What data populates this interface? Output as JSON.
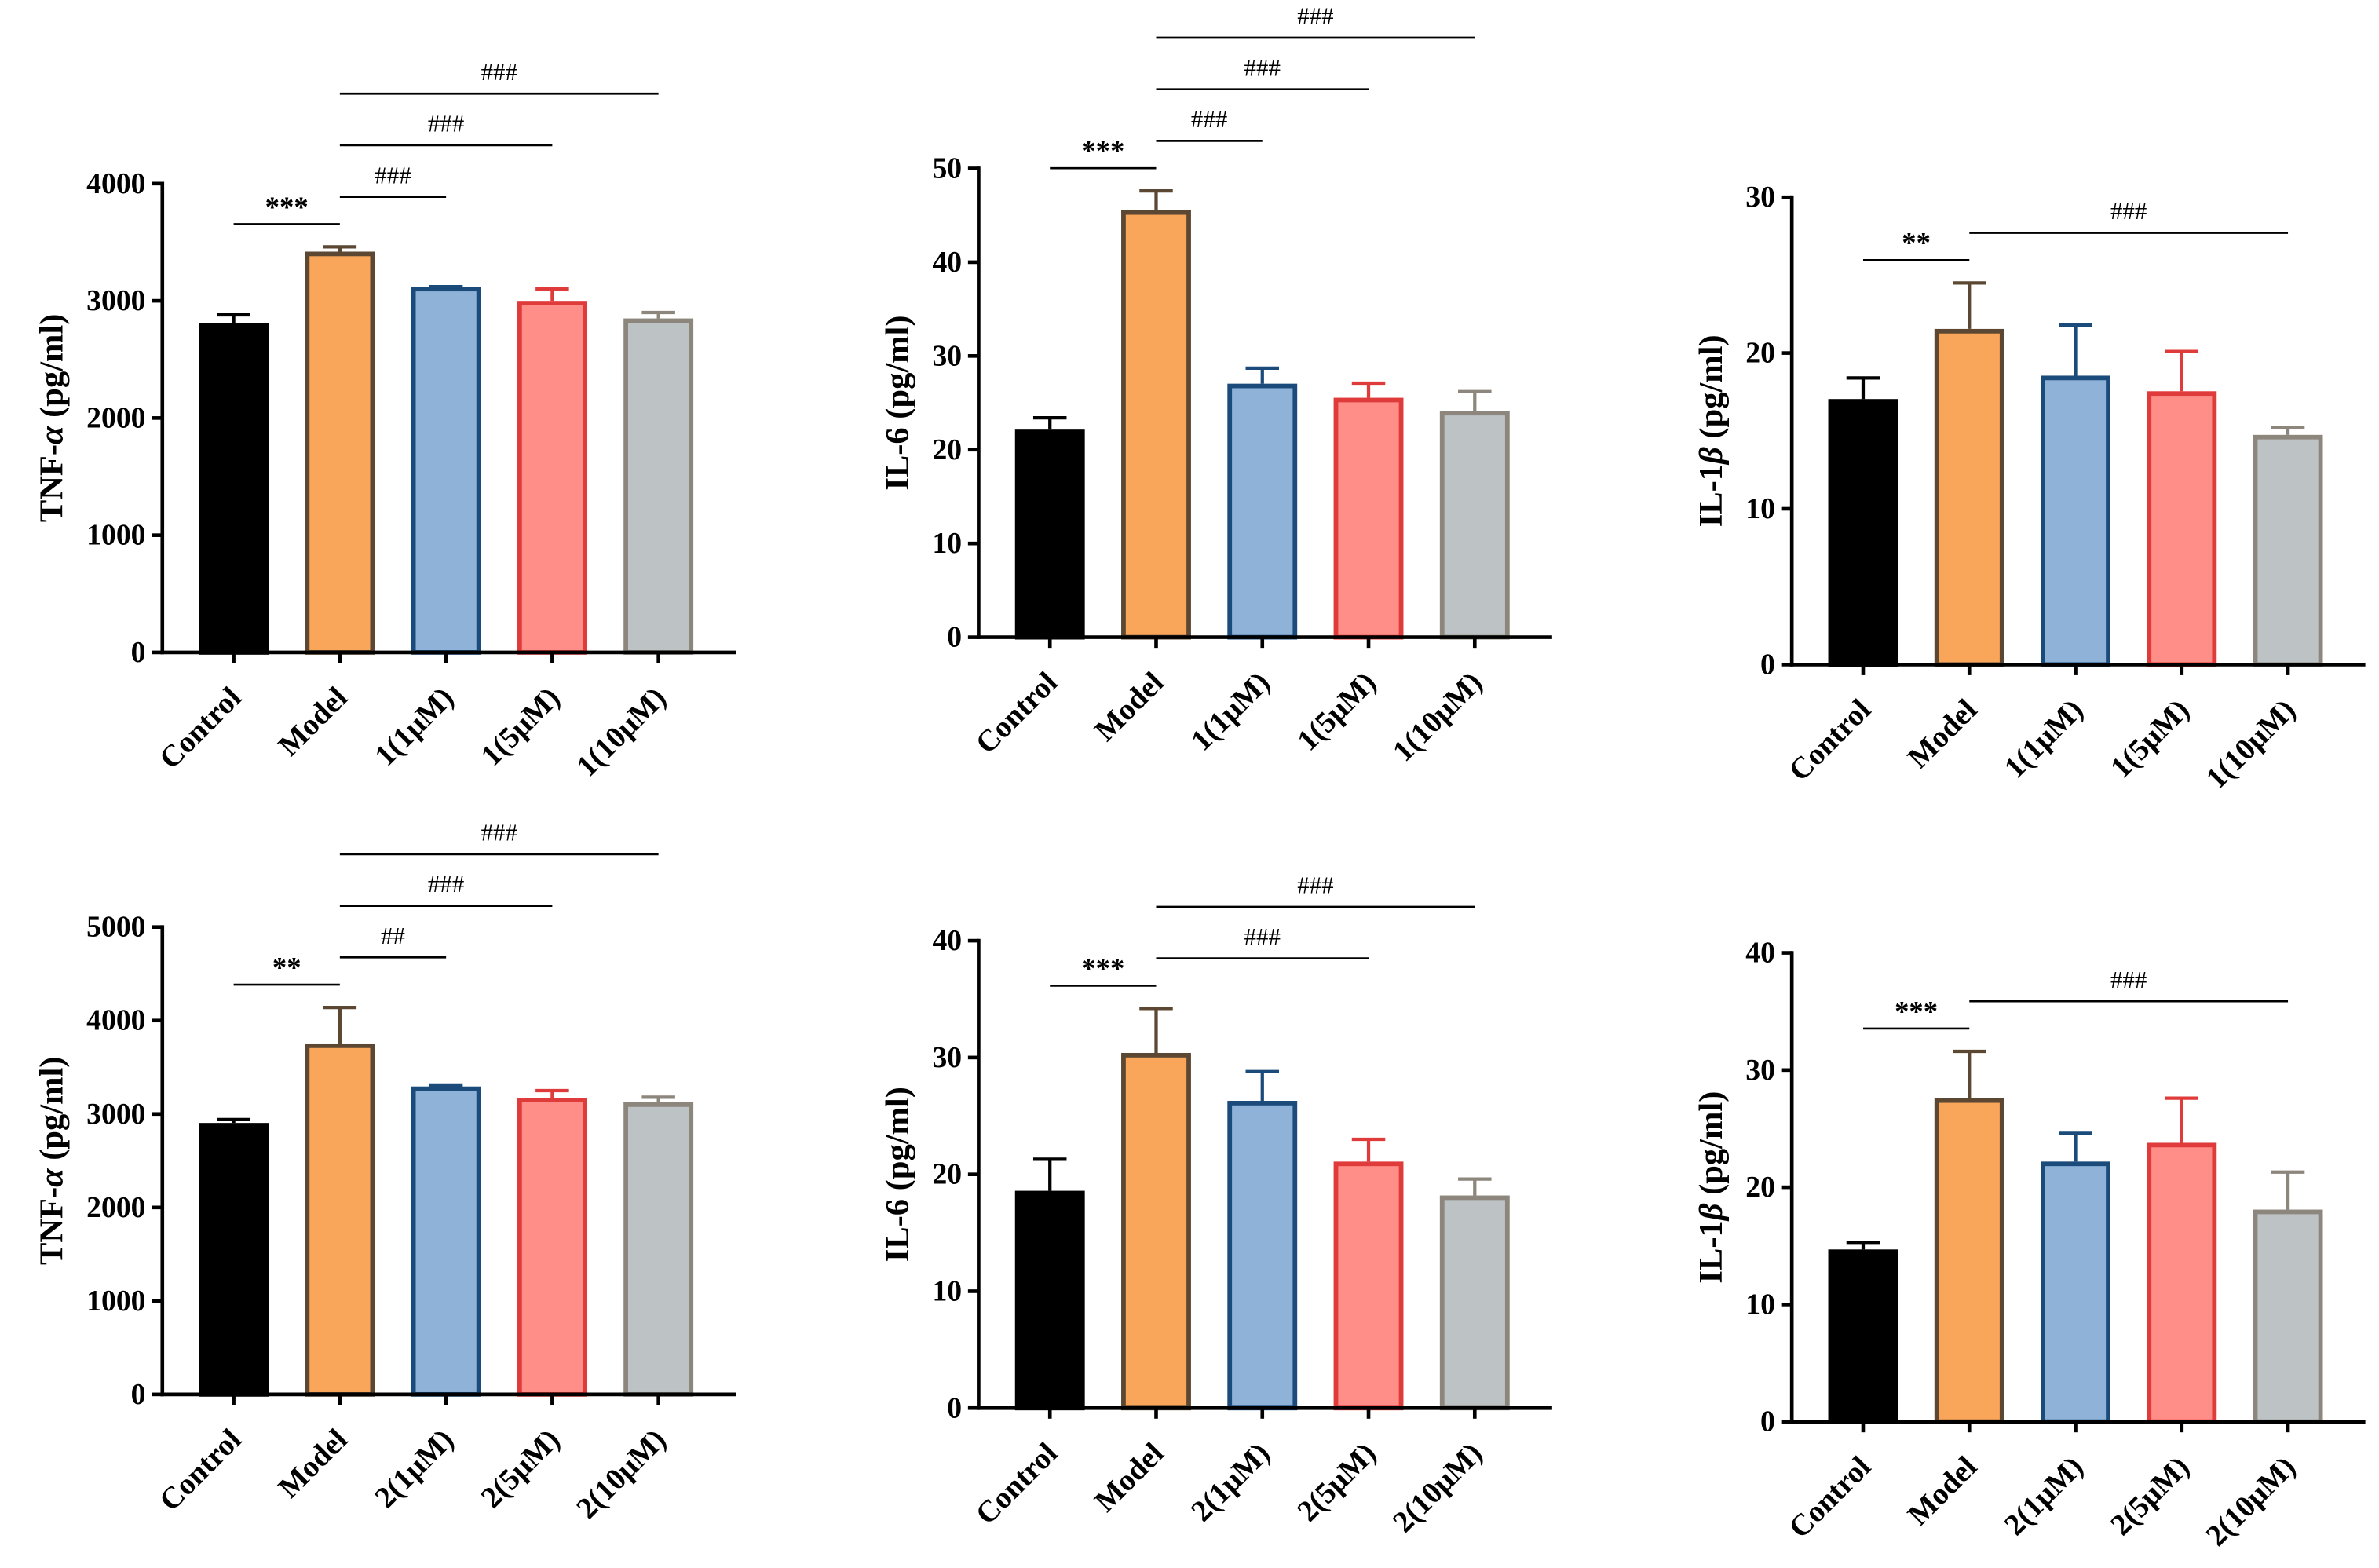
{
  "palette": {
    "fills": [
      "#000000",
      "#F9A65A",
      "#8EB2D8",
      "#FF8E88",
      "#BDC2C4"
    ],
    "edges": [
      "#000000",
      "#5C4832",
      "#1B4B7B",
      "#E03B3B",
      "#8C867C"
    ]
  },
  "chart_data": [
    {
      "type": "bar",
      "categories": [
        "Control",
        "Model",
        "1(1μM)",
        "1(5μM)",
        "1(10μM)"
      ],
      "values": [
        2790,
        3400,
        3100,
        2980,
        2830
      ],
      "errors": [
        90,
        60,
        20,
        120,
        70
      ],
      "ylabel": "TNF-α (pg/ml)",
      "ylim": [
        0,
        4000
      ],
      "yticks": [
        0,
        1000,
        2000,
        3000,
        4000
      ],
      "grid": false,
      "annotations": [
        {
          "text": "***",
          "between": [
            0,
            1
          ]
        },
        {
          "text": "###",
          "between": [
            1,
            2
          ]
        },
        {
          "text": "###",
          "between": [
            1,
            3
          ]
        },
        {
          "text": "###",
          "between": [
            1,
            4
          ]
        }
      ]
    },
    {
      "type": "bar",
      "categories": [
        "Control",
        "Model",
        "1(1μM)",
        "1(5μM)",
        "1(10μM)"
      ],
      "values": [
        21.9,
        45.3,
        26.8,
        25.3,
        23.9
      ],
      "errors": [
        1.5,
        2.3,
        1.9,
        1.8,
        2.3
      ],
      "ylabel": "IL-6 (pg/ml)",
      "ylim": [
        0,
        50
      ],
      "yticks": [
        0,
        10,
        20,
        30,
        40,
        50
      ],
      "grid": false,
      "annotations": [
        {
          "text": "***",
          "between": [
            0,
            1
          ]
        },
        {
          "text": "###",
          "between": [
            1,
            2
          ]
        },
        {
          "text": "###",
          "between": [
            1,
            3
          ]
        },
        {
          "text": "###",
          "between": [
            1,
            4
          ]
        }
      ]
    },
    {
      "type": "bar",
      "categories": [
        "Control",
        "Model",
        "1(1μM)",
        "1(5μM)",
        "1(10μM)"
      ],
      "values": [
        16.9,
        21.4,
        18.4,
        17.4,
        14.6
      ],
      "errors": [
        1.5,
        3.1,
        3.4,
        2.7,
        0.6
      ],
      "ylabel": "IL-1β (pg/ml)",
      "ylim": [
        0,
        30
      ],
      "yticks": [
        0,
        10,
        20,
        30
      ],
      "grid": false,
      "annotations": [
        {
          "text": "**",
          "between": [
            0,
            1
          ]
        },
        {
          "text": "###",
          "between": [
            1,
            4
          ]
        }
      ]
    },
    {
      "type": "bar",
      "categories": [
        "Control",
        "Model",
        "2(1μM)",
        "2(5μM)",
        "2(10μM)"
      ],
      "values": [
        2880,
        3730,
        3270,
        3150,
        3100
      ],
      "errors": [
        60,
        410,
        40,
        100,
        80
      ],
      "ylabel": "TNF-α (pg/ml)",
      "ylim": [
        0,
        5000
      ],
      "yticks": [
        0,
        1000,
        2000,
        3000,
        4000,
        5000
      ],
      "grid": false,
      "annotations": [
        {
          "text": "**",
          "between": [
            0,
            1
          ]
        },
        {
          "text": "##",
          "between": [
            1,
            2
          ]
        },
        {
          "text": "###",
          "between": [
            1,
            3
          ]
        },
        {
          "text": "###",
          "between": [
            1,
            4
          ]
        }
      ]
    },
    {
      "type": "bar",
      "categories": [
        "Control",
        "Model",
        "2(1μM)",
        "2(5μM)",
        "2(10μM)"
      ],
      "values": [
        18.4,
        30.2,
        26.1,
        20.9,
        18.0
      ],
      "errors": [
        2.9,
        4.0,
        2.7,
        2.1,
        1.6
      ],
      "ylabel": "IL-6 (pg/ml)",
      "ylim": [
        0,
        40
      ],
      "yticks": [
        0,
        10,
        20,
        30,
        40
      ],
      "grid": false,
      "annotations": [
        {
          "text": "***",
          "between": [
            0,
            1
          ]
        },
        {
          "text": "###",
          "between": [
            1,
            3
          ]
        },
        {
          "text": "###",
          "between": [
            1,
            4
          ]
        }
      ]
    },
    {
      "type": "bar",
      "categories": [
        "Control",
        "Model",
        "2(1μM)",
        "2(5μM)",
        "2(10μM)"
      ],
      "values": [
        14.5,
        27.4,
        22.0,
        23.6,
        17.9
      ],
      "errors": [
        0.8,
        4.2,
        2.6,
        4.0,
        3.4
      ],
      "ylabel": "IL-1β (pg/ml)",
      "ylim": [
        0,
        40
      ],
      "yticks": [
        0,
        10,
        20,
        30,
        40
      ],
      "grid": false,
      "annotations": [
        {
          "text": "***",
          "between": [
            0,
            1
          ]
        },
        {
          "text": "###",
          "between": [
            1,
            4
          ]
        }
      ]
    }
  ]
}
